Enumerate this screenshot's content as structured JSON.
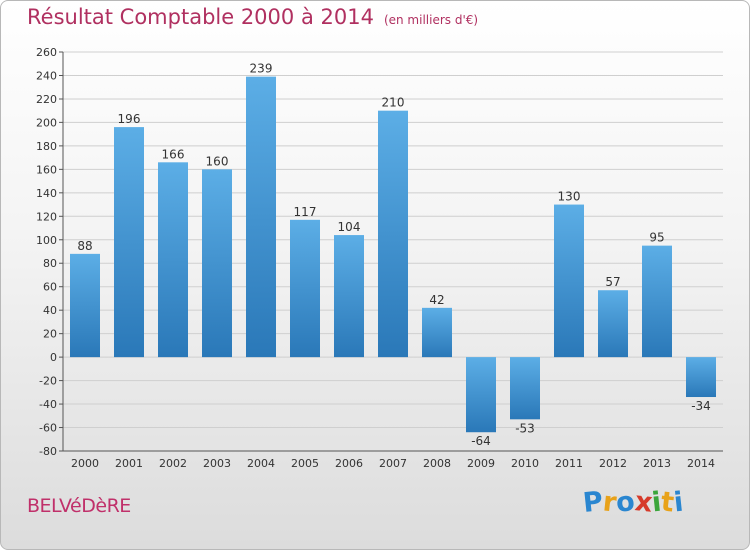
{
  "title": "Résultat Comptable 2000 à 2014",
  "subtitle": "(en milliers d'€)",
  "town": "BELVéDèRE",
  "logo": {
    "text": "Proxiti",
    "letters": [
      "P",
      "r",
      "o",
      "x",
      "i",
      "t",
      "i"
    ],
    "colors": [
      "#2a86d0",
      "#e8a21a",
      "#2a86d0",
      "#d63a2a",
      "#3aa53a",
      "#e8a21a",
      "#2a86d0"
    ]
  },
  "colors": {
    "bar_top": "#5caee6",
    "bar_bottom": "#2a78b8",
    "grid": "#cfcfcf",
    "title": "#b03060"
  },
  "chart_data": {
    "type": "bar",
    "title": "Résultat Comptable 2000 à 2014",
    "subtitle": "(en milliers d'€)",
    "categories": [
      "2000",
      "2001",
      "2002",
      "2003",
      "2004",
      "2005",
      "2006",
      "2007",
      "2008",
      "2009",
      "2010",
      "2011",
      "2012",
      "2013",
      "2014"
    ],
    "values": [
      88,
      196,
      166,
      160,
      239,
      117,
      104,
      210,
      42,
      -64,
      -53,
      130,
      57,
      95,
      -34
    ],
    "yticks": [
      "-80",
      "-60",
      "-40",
      "-20",
      "0",
      "20",
      "40",
      "60",
      "80",
      "100",
      "120",
      "140",
      "160",
      "180",
      "200",
      "220",
      "240",
      "260"
    ],
    "ylim": [
      -80,
      260
    ],
    "xlabel": "",
    "ylabel": "",
    "grid": true
  }
}
